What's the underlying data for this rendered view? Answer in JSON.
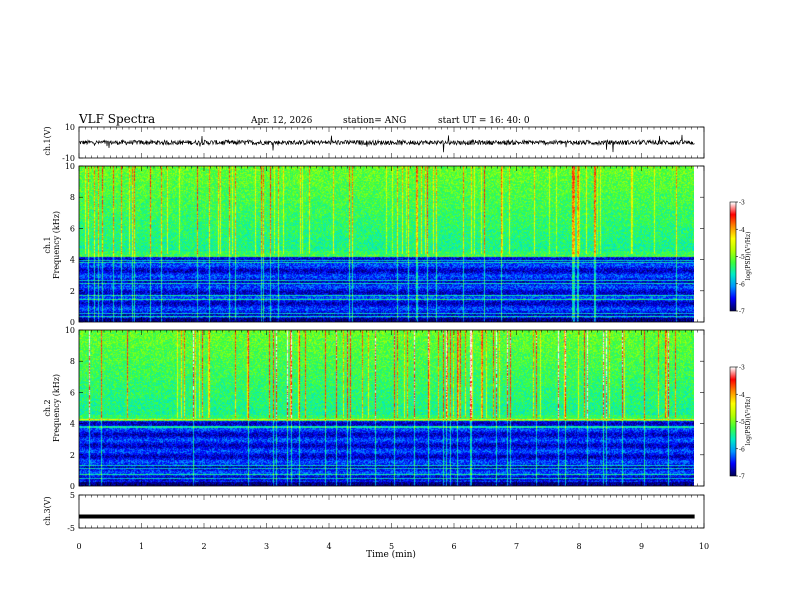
{
  "header": {
    "title": "VLF Spectra",
    "date": "Apr. 12, 2026",
    "station": "station= ANG",
    "start_time": "start  UT =   16: 40: 0"
  },
  "chart_data": [
    {
      "type": "line",
      "panel": "ch1-waveform",
      "ylabel": "ch.1(V)",
      "ylim": [
        -10,
        10
      ],
      "yticks": [
        "10",
        "-10"
      ],
      "x_range_min": [
        0,
        9.85
      ],
      "baseline": 0,
      "noise_amplitude": 1.5
    },
    {
      "type": "heatmap",
      "panel": "ch1-spectrogram",
      "ylabel_top": "ch.1",
      "ylabel": "Frequency  (kHz)",
      "ylim": [
        0,
        10
      ],
      "yticks": [
        "0",
        "2",
        "4",
        "6",
        "8",
        "10"
      ],
      "colorbar": {
        "label": "log(PSD)(V²/Hz)",
        "ticks": [
          "-3",
          "-4",
          "-5",
          "-6",
          "-7"
        ],
        "range": [
          -7,
          -3
        ],
        "colormap": [
          "#000060",
          "#0000ff",
          "#00a0ff",
          "#00ffb0",
          "#80ff00",
          "#ffff00",
          "#ff8000",
          "#ff0000",
          "#ffffff"
        ]
      }
    },
    {
      "type": "heatmap",
      "panel": "ch2-spectrogram",
      "ylabel_top": "ch.2",
      "ylabel": "Frequency  (kHz)",
      "ylim": [
        0,
        10
      ],
      "yticks": [
        "0",
        "2",
        "4",
        "6",
        "8",
        "10"
      ],
      "colorbar": {
        "label": "log(PSD)(V²/Hz)",
        "ticks": [
          "-3",
          "-4",
          "-5",
          "-6",
          "-7"
        ],
        "range": [
          -7,
          -3
        ],
        "colormap": [
          "#000060",
          "#0000ff",
          "#00a0ff",
          "#00ffb0",
          "#80ff00",
          "#ffff00",
          "#ff8000",
          "#ff0000",
          "#ffffff"
        ]
      }
    },
    {
      "type": "line",
      "panel": "ch3-waveform",
      "ylabel": "ch.3(V)",
      "ylim": [
        -5,
        5
      ],
      "yticks": [
        "5",
        "-5"
      ],
      "value": -1.5
    }
  ],
  "xaxis": {
    "label": "Time  (min)",
    "ticks": [
      "0",
      "1",
      "2",
      "3",
      "4",
      "5",
      "6",
      "7",
      "8",
      "9",
      "10"
    ],
    "xlim": [
      0,
      10
    ]
  }
}
